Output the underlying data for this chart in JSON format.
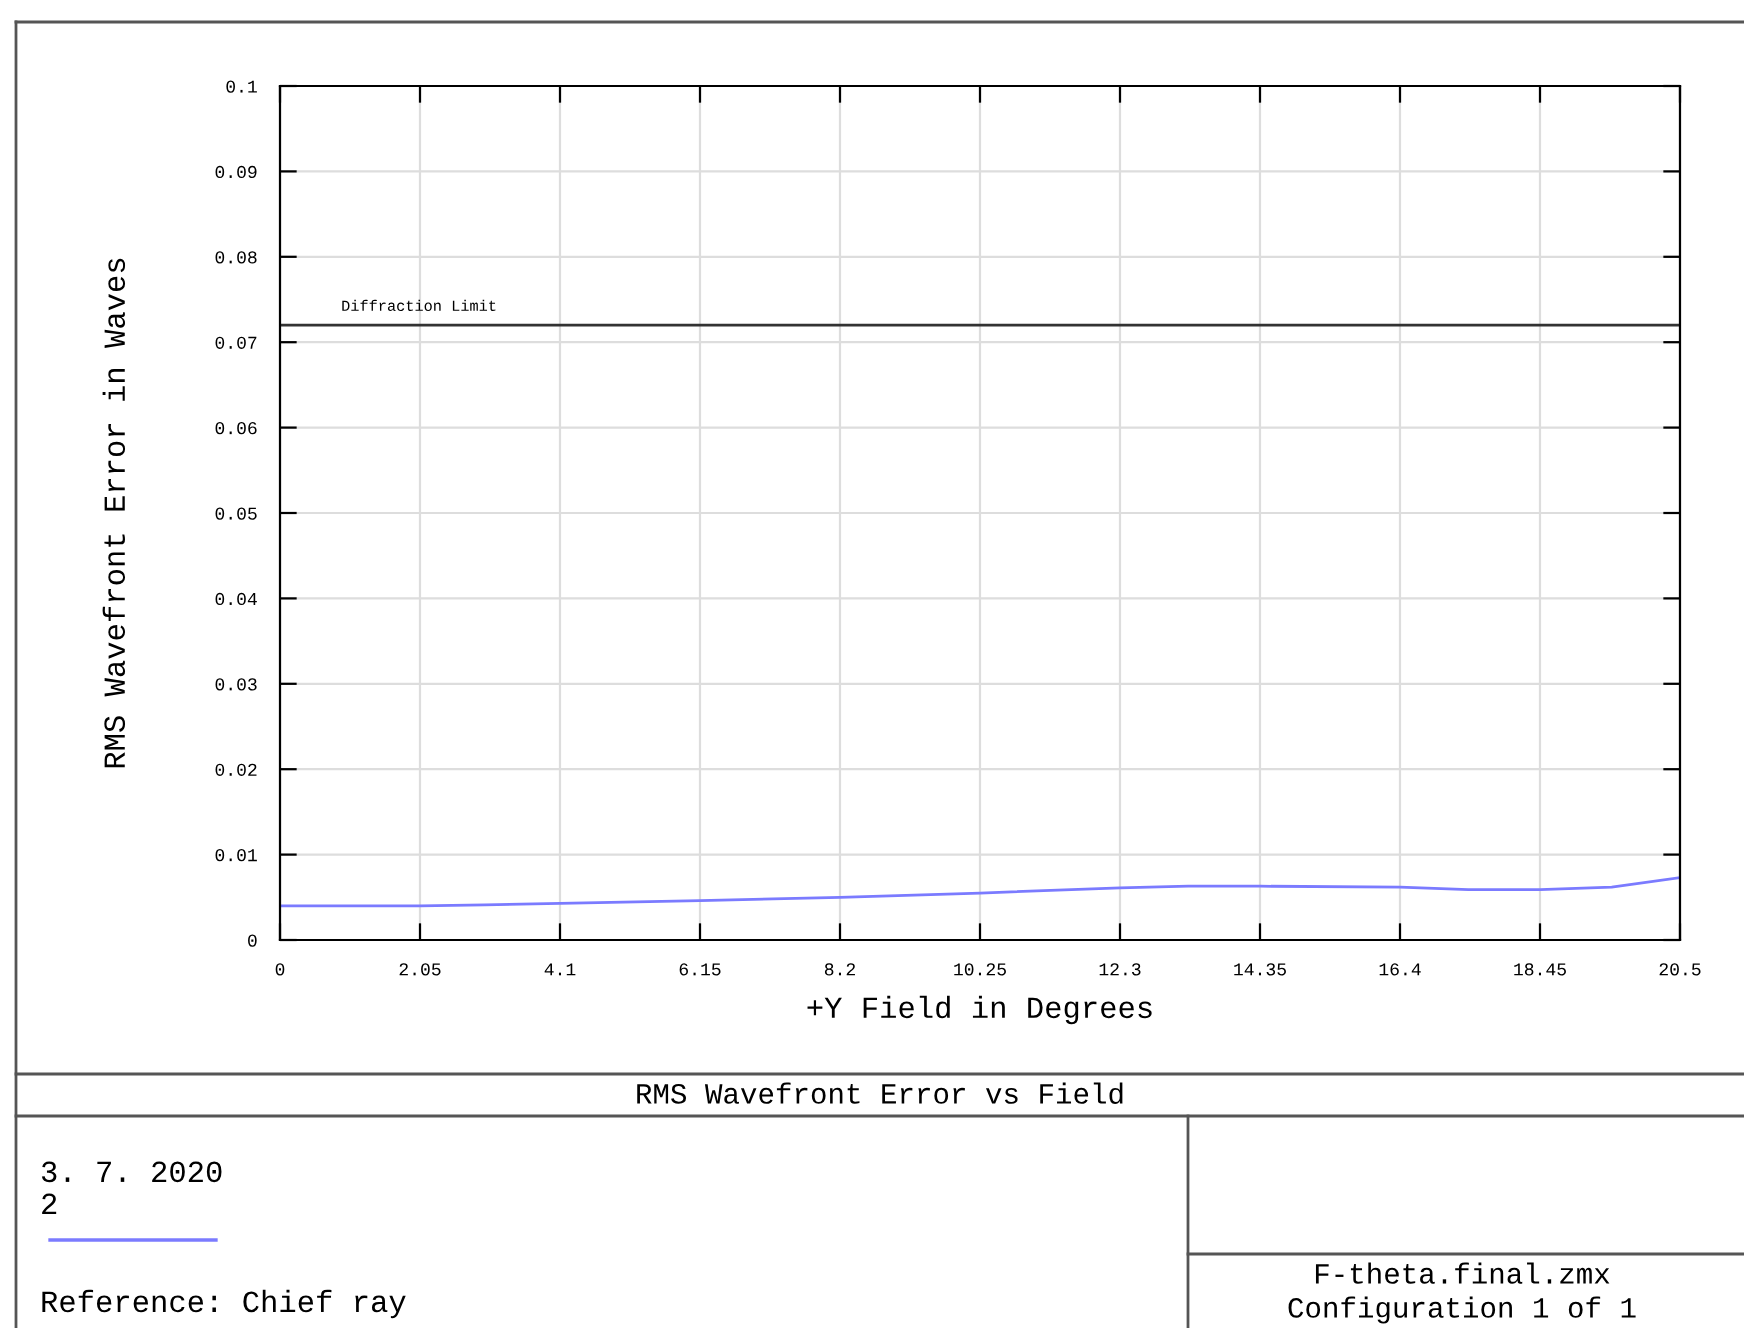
{
  "chart_data": {
    "type": "line",
    "title": "RMS Wavefront Error vs Field",
    "xlabel": "+Y Field in Degrees",
    "ylabel": "RMS Wavefront Error in Waves",
    "x": [
      0,
      2.05,
      3.0,
      4.1,
      6.15,
      8.2,
      10.25,
      12.3,
      13.3,
      14.35,
      16.4,
      17.4,
      18.45,
      19.5,
      20.5
    ],
    "series": [
      {
        "color": "#7b7bff",
        "values": [
          0.004,
          0.004,
          0.0041,
          0.0043,
          0.0046,
          0.005,
          0.0055,
          0.0061,
          0.0063,
          0.0063,
          0.0062,
          0.0059,
          0.0059,
          0.0062,
          0.0073
        ]
      }
    ],
    "xlim": [
      0,
      20.5
    ],
    "ylim": [
      0,
      0.1
    ],
    "xticks": [
      0,
      2.05,
      4.1,
      6.15,
      8.2,
      10.25,
      12.3,
      14.35,
      16.4,
      18.45,
      20.5
    ],
    "yticks": [
      0,
      0.01,
      0.02,
      0.03,
      0.04,
      0.05,
      0.06,
      0.07,
      0.08,
      0.09,
      0.1
    ],
    "ref_lines": [
      {
        "axis": "y",
        "value": 0.072,
        "label": "Diffraction Limit",
        "color": "#333333"
      }
    ],
    "grid": true,
    "marker": "none",
    "line_style": "solid",
    "annotations": [
      "3. 7. 2020",
      "2",
      "Reference: Chief ray",
      "F-theta.final.zmx",
      "Configuration 1 of 1"
    ]
  }
}
